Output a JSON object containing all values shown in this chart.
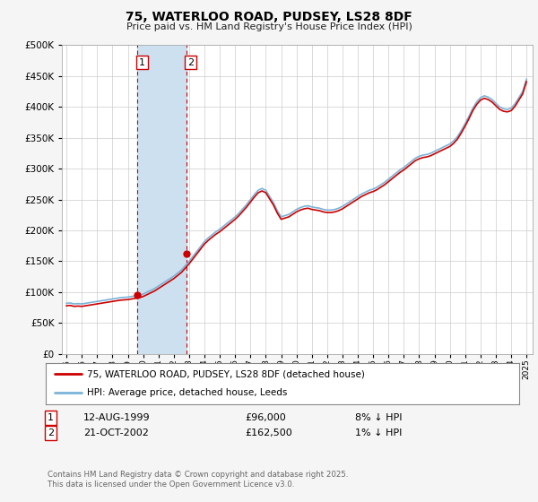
{
  "title": "75, WATERLOO ROAD, PUDSEY, LS28 8DF",
  "subtitle": "Price paid vs. HM Land Registry's House Price Index (HPI)",
  "legend_line1": "75, WATERLOO ROAD, PUDSEY, LS28 8DF (detached house)",
  "legend_line2": "HPI: Average price, detached house, Leeds",
  "footnote": "Contains HM Land Registry data © Crown copyright and database right 2025.\nThis data is licensed under the Open Government Licence v3.0.",
  "transaction1": {
    "label": "1",
    "date": "12-AUG-1999",
    "price": "£96,000",
    "hpi": "8% ↓ HPI",
    "year": 1999.62,
    "value": 96000
  },
  "transaction2": {
    "label": "2",
    "date": "21-OCT-2002",
    "price": "£162,500",
    "hpi": "1% ↓ HPI",
    "year": 2002.8,
    "value": 162500
  },
  "hpi_color": "#7ab3d8",
  "price_color": "#cc0000",
  "bg_color": "#f5f5f5",
  "plot_bg": "#ffffff",
  "grid_color": "#cccccc",
  "highlight_color": "#cce0f0",
  "vline_color": "#cc0000",
  "ylim": [
    0,
    500000
  ],
  "yticks": [
    0,
    50000,
    100000,
    150000,
    200000,
    250000,
    300000,
    350000,
    400000,
    450000,
    500000
  ],
  "xlim_start": 1994.7,
  "xlim_end": 2025.4,
  "hpi_years": [
    1995.0,
    1995.25,
    1995.5,
    1995.75,
    1996.0,
    1996.25,
    1996.5,
    1996.75,
    1997.0,
    1997.25,
    1997.5,
    1997.75,
    1998.0,
    1998.25,
    1998.5,
    1998.75,
    1999.0,
    1999.25,
    1999.5,
    1999.75,
    2000.0,
    2000.25,
    2000.5,
    2000.75,
    2001.0,
    2001.25,
    2001.5,
    2001.75,
    2002.0,
    2002.25,
    2002.5,
    2002.75,
    2003.0,
    2003.25,
    2003.5,
    2003.75,
    2004.0,
    2004.25,
    2004.5,
    2004.75,
    2005.0,
    2005.25,
    2005.5,
    2005.75,
    2006.0,
    2006.25,
    2006.5,
    2006.75,
    2007.0,
    2007.25,
    2007.5,
    2007.75,
    2008.0,
    2008.25,
    2008.5,
    2008.75,
    2009.0,
    2009.25,
    2009.5,
    2009.75,
    2010.0,
    2010.25,
    2010.5,
    2010.75,
    2011.0,
    2011.25,
    2011.5,
    2011.75,
    2012.0,
    2012.25,
    2012.5,
    2012.75,
    2013.0,
    2013.25,
    2013.5,
    2013.75,
    2014.0,
    2014.25,
    2014.5,
    2014.75,
    2015.0,
    2015.25,
    2015.5,
    2015.75,
    2016.0,
    2016.25,
    2016.5,
    2016.75,
    2017.0,
    2017.25,
    2017.5,
    2017.75,
    2018.0,
    2018.25,
    2018.5,
    2018.75,
    2019.0,
    2019.25,
    2019.5,
    2019.75,
    2020.0,
    2020.25,
    2020.5,
    2020.75,
    2021.0,
    2021.25,
    2021.5,
    2021.75,
    2022.0,
    2022.25,
    2022.5,
    2022.75,
    2023.0,
    2023.25,
    2023.5,
    2023.75,
    2024.0,
    2024.25,
    2024.5,
    2024.75,
    2025.0
  ],
  "hpi_values": [
    82000,
    82500,
    81000,
    81500,
    81000,
    82000,
    83000,
    84000,
    85000,
    86000,
    87000,
    88000,
    89000,
    90000,
    91000,
    91500,
    92000,
    93000,
    94000,
    95000,
    97000,
    100000,
    103000,
    106000,
    110000,
    114000,
    118000,
    122000,
    126000,
    131000,
    136000,
    143000,
    150000,
    158000,
    166000,
    174000,
    182000,
    188000,
    193000,
    198000,
    202000,
    207000,
    212000,
    217000,
    222000,
    228000,
    235000,
    242000,
    250000,
    258000,
    265000,
    268000,
    265000,
    255000,
    245000,
    232000,
    222000,
    224000,
    226000,
    230000,
    234000,
    237000,
    239000,
    240000,
    238000,
    237000,
    236000,
    234000,
    233000,
    233000,
    234000,
    236000,
    239000,
    243000,
    247000,
    251000,
    255000,
    259000,
    262000,
    265000,
    267000,
    270000,
    274000,
    278000,
    283000,
    288000,
    293000,
    298000,
    302000,
    307000,
    312000,
    317000,
    320000,
    322000,
    323000,
    325000,
    328000,
    331000,
    334000,
    337000,
    340000,
    345000,
    352000,
    362000,
    373000,
    385000,
    398000,
    408000,
    415000,
    418000,
    416000,
    412000,
    406000,
    400000,
    397000,
    396000,
    398000,
    405000,
    415000,
    425000,
    445000
  ],
  "prop_values": [
    78000,
    78500,
    77000,
    77500,
    77000,
    78000,
    79000,
    80000,
    81000,
    82000,
    83000,
    84000,
    85000,
    86000,
    87000,
    87500,
    88000,
    89000,
    90000,
    91000,
    93000,
    96000,
    99000,
    102000,
    106000,
    110000,
    114000,
    118000,
    122000,
    127000,
    132000,
    139000,
    146000,
    154000,
    162000,
    170000,
    178000,
    184000,
    189000,
    194000,
    198000,
    203000,
    208000,
    213000,
    218000,
    224000,
    231000,
    238000,
    246000,
    254000,
    261000,
    264000,
    261000,
    251000,
    241000,
    228000,
    218000,
    220000,
    222000,
    226000,
    230000,
    233000,
    235000,
    236000,
    234000,
    233000,
    232000,
    230000,
    229000,
    229000,
    230000,
    232000,
    235000,
    239000,
    243000,
    247000,
    251000,
    255000,
    258000,
    261000,
    263000,
    266000,
    270000,
    274000,
    279000,
    284000,
    289000,
    294000,
    298000,
    303000,
    308000,
    313000,
    316000,
    318000,
    319000,
    321000,
    324000,
    327000,
    330000,
    333000,
    336000,
    341000,
    348000,
    358000,
    369000,
    381000,
    394000,
    404000,
    411000,
    414000,
    412000,
    408000,
    402000,
    396000,
    393000,
    392000,
    394000,
    401000,
    411000,
    421000,
    441000
  ]
}
